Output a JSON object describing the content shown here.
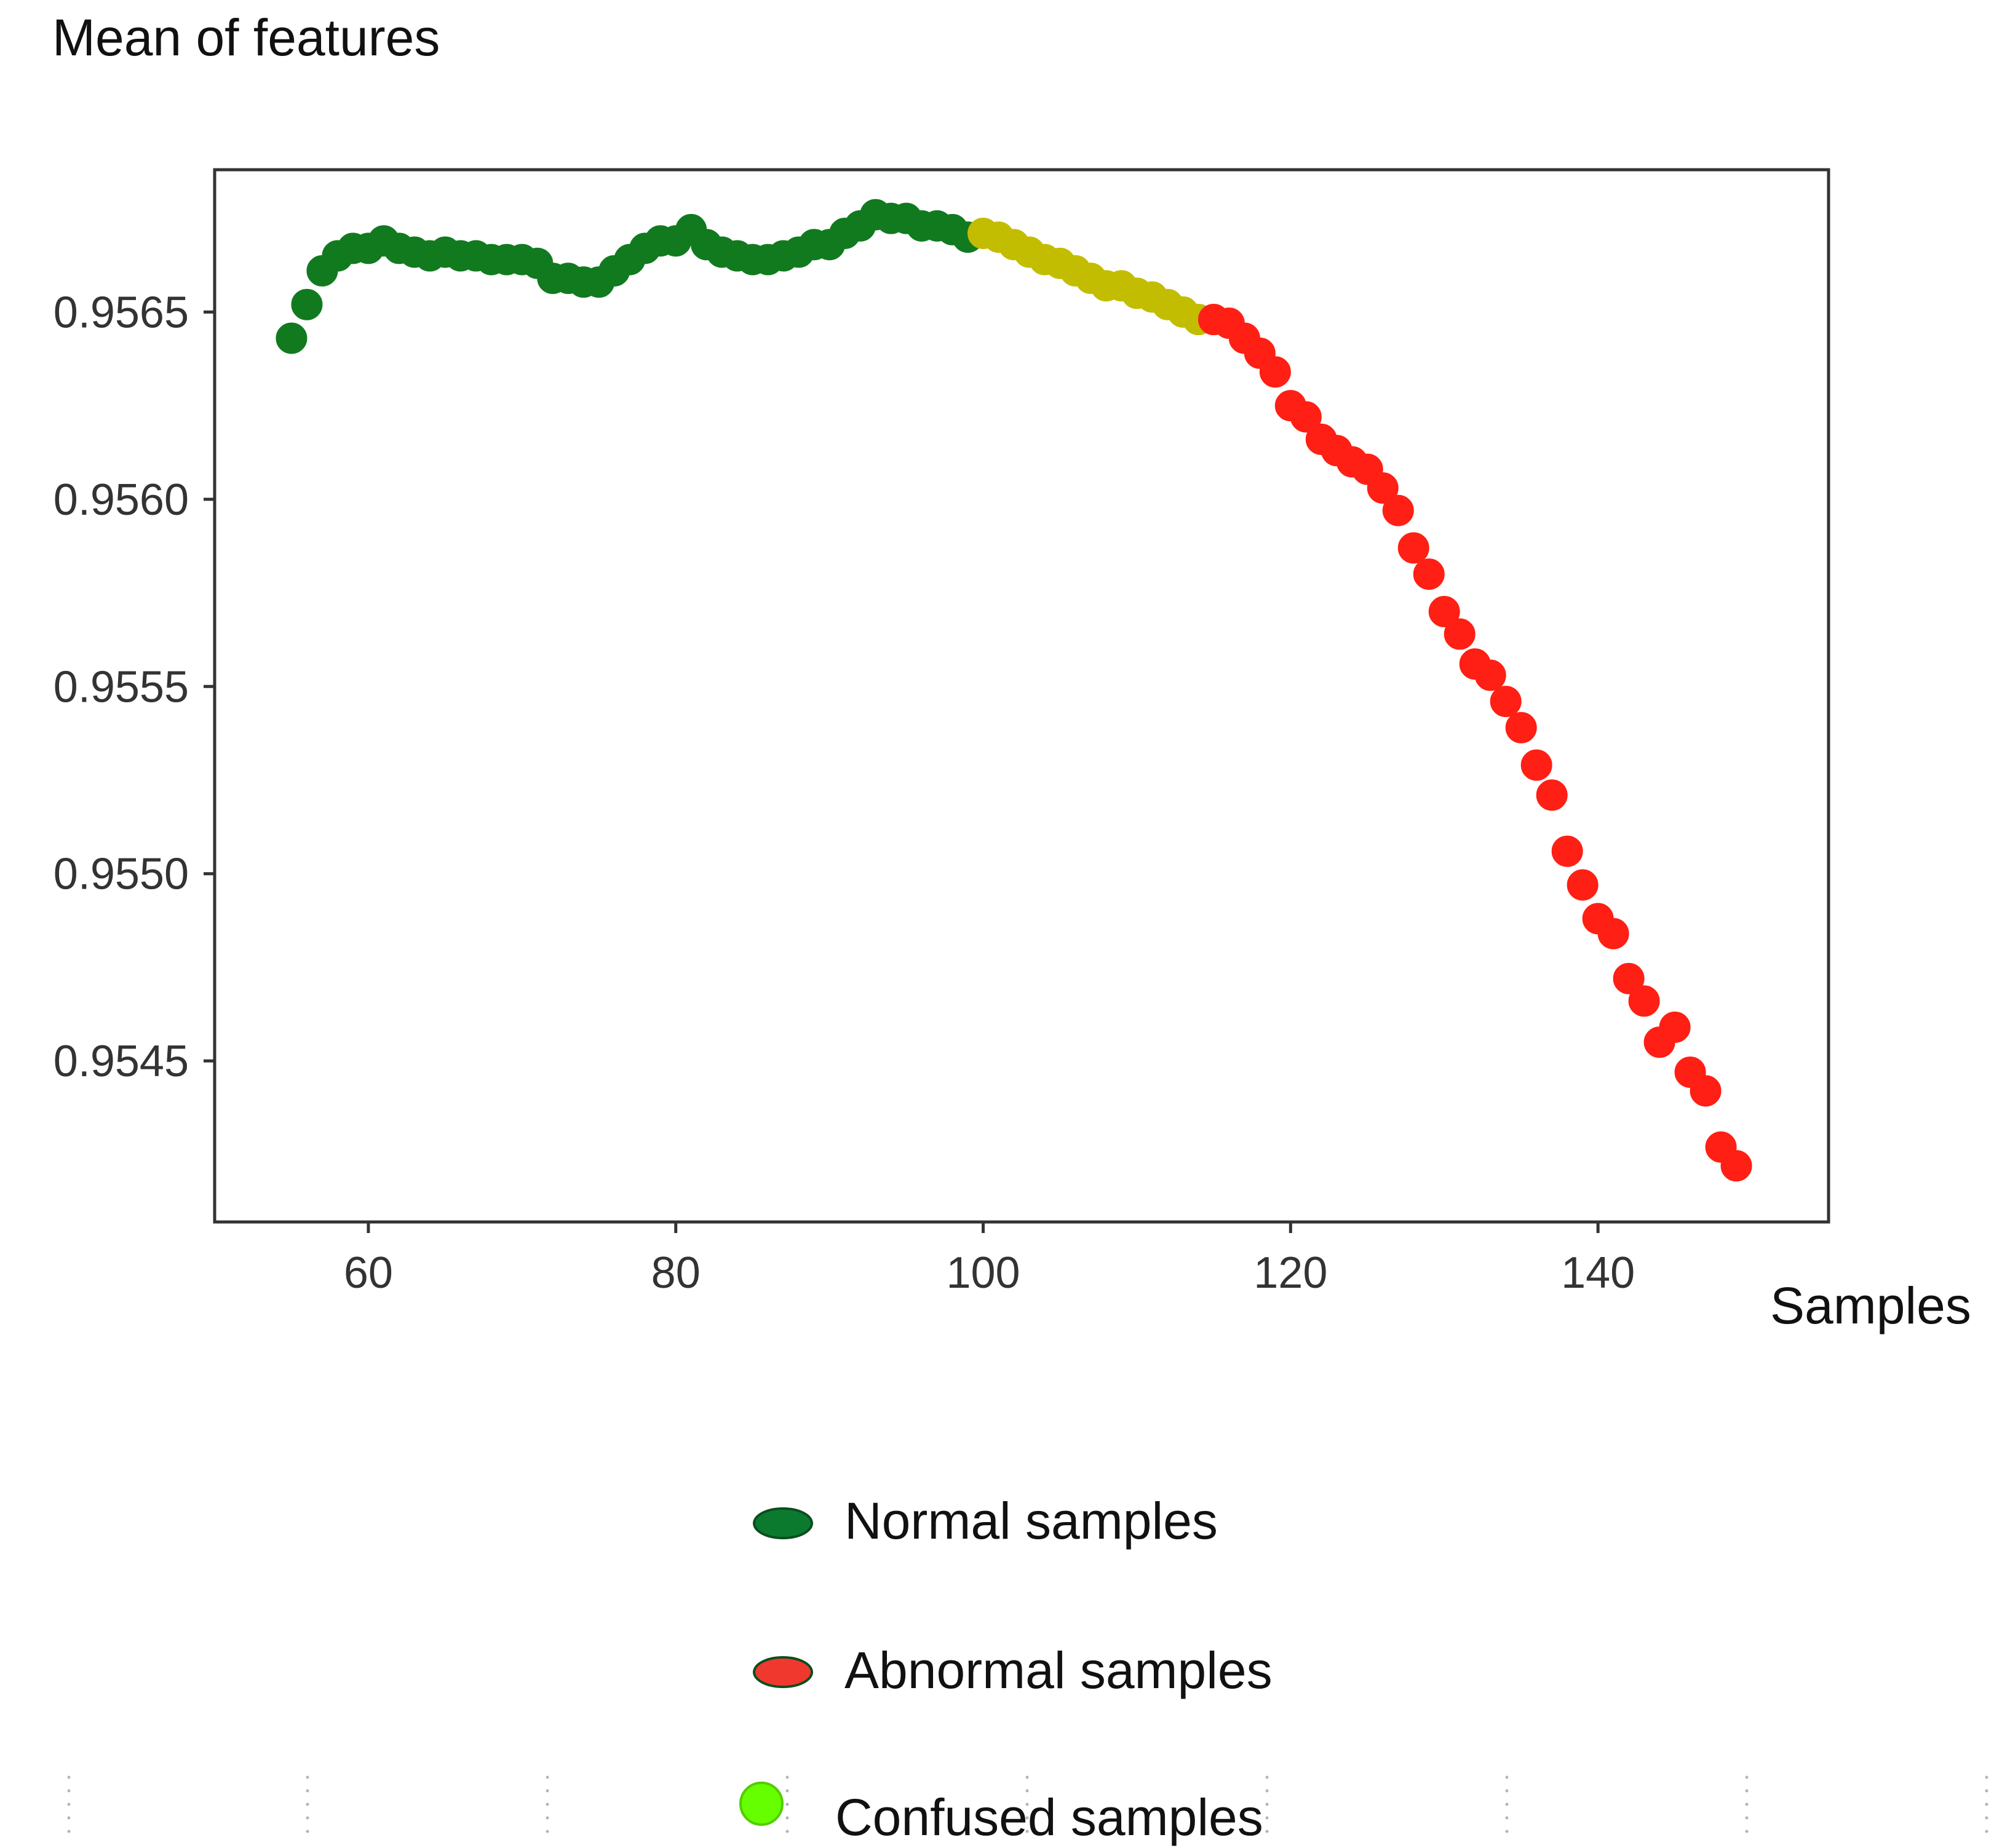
{
  "chart_data": {
    "type": "scatter",
    "ylabel": "Mean of features",
    "xlabel": "Samples",
    "xlim": [
      50,
      155
    ],
    "ylim": [
      0.95407,
      0.95688
    ],
    "x_ticks": [
      60,
      80,
      100,
      120,
      140
    ],
    "y_ticks": [
      0.9545,
      0.955,
      0.9555,
      0.956,
      0.9565
    ],
    "y_tick_labels": [
      "0.9545",
      "0.9550",
      "0.9555",
      "0.9560",
      "0.9565"
    ],
    "grid": false,
    "legend": {
      "placement": "bottom-center",
      "entries": [
        {
          "label": "Normal samples",
          "color": "#0b7a2f",
          "marker": "ellipse"
        },
        {
          "label": "Abnormal samples",
          "color": "#f0382e",
          "marker": "ellipse"
        },
        {
          "label": "Confused samples",
          "color": "#66ff00",
          "marker": "circle"
        }
      ]
    },
    "series": [
      {
        "name": "Normal samples",
        "color": "#117a1f",
        "x": [
          55,
          56,
          57,
          58,
          59,
          60,
          61,
          62,
          63,
          64,
          65,
          66,
          67,
          68,
          69,
          70,
          71,
          72,
          73,
          74,
          75,
          76,
          77,
          78,
          79,
          80,
          81,
          82,
          83,
          84,
          85,
          86,
          87,
          88,
          89,
          90,
          91,
          92,
          93,
          94,
          95,
          96,
          97,
          98,
          99
        ],
        "y": [
          0.95643,
          0.95652,
          0.95661,
          0.95665,
          0.95667,
          0.95667,
          0.95669,
          0.95667,
          0.95666,
          0.95665,
          0.95666,
          0.95665,
          0.95665,
          0.95664,
          0.95664,
          0.95664,
          0.95663,
          0.95659,
          0.95659,
          0.95658,
          0.95658,
          0.95661,
          0.95664,
          0.95667,
          0.95669,
          0.95669,
          0.95672,
          0.95668,
          0.95666,
          0.95665,
          0.95664,
          0.95664,
          0.95665,
          0.95666,
          0.95668,
          0.95668,
          0.95671,
          0.95673,
          0.95676,
          0.95675,
          0.95675,
          0.95673,
          0.95673,
          0.95672,
          0.9567
        ]
      },
      {
        "name": "Confused samples",
        "color": "#c2bd00",
        "x": [
          100,
          101,
          102,
          103,
          104,
          105,
          106,
          107,
          108,
          109,
          110,
          111,
          112,
          113,
          114
        ],
        "y": [
          0.95671,
          0.9567,
          0.95668,
          0.95666,
          0.95664,
          0.95663,
          0.95661,
          0.95659,
          0.95657,
          0.95657,
          0.95655,
          0.95654,
          0.95652,
          0.9565,
          0.95648
        ]
      },
      {
        "name": "Abnormal samples",
        "color": "#ff1f14",
        "x": [
          115,
          116,
          117,
          118,
          119,
          120,
          121,
          122,
          123,
          124,
          125,
          126,
          127,
          128,
          129,
          130,
          131,
          132,
          133,
          134,
          135,
          136,
          137,
          138,
          139,
          140,
          141,
          142,
          143,
          144,
          145,
          146,
          147,
          148,
          149
        ],
        "y": [
          0.95648,
          0.95647,
          0.95643,
          0.95639,
          0.95634,
          0.95625,
          0.95622,
          0.95616,
          0.95613,
          0.9561,
          0.95608,
          0.95603,
          0.95597,
          0.95587,
          0.9558,
          0.9557,
          0.95564,
          0.95556,
          0.95553,
          0.95546,
          0.95539,
          0.95529,
          0.95521,
          0.95506,
          0.95497,
          0.95488,
          0.95484,
          0.95472,
          0.95466,
          0.95455,
          0.95459,
          0.95447,
          0.95442,
          0.95427,
          0.95422
        ]
      }
    ]
  }
}
